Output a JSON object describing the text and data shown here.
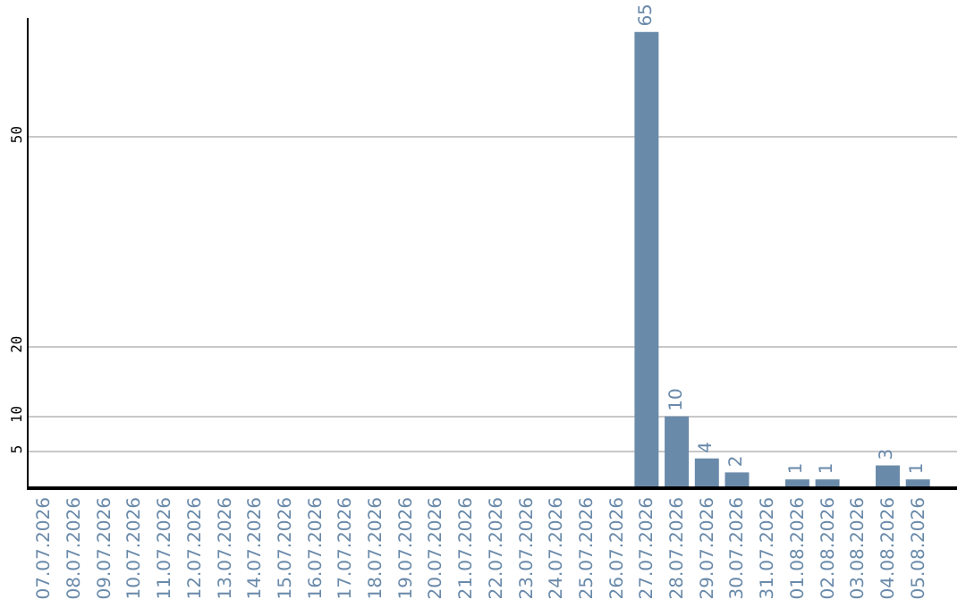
{
  "chart_data": {
    "type": "bar",
    "color": "#6a8aaa",
    "categories": [
      "07.07.2026",
      "08.07.2026",
      "09.07.2026",
      "10.07.2026",
      "11.07.2026",
      "12.07.2026",
      "13.07.2026",
      "14.07.2026",
      "15.07.2026",
      "16.07.2026",
      "17.07.2026",
      "18.07.2026",
      "19.07.2026",
      "20.07.2026",
      "21.07.2026",
      "22.07.2026",
      "23.07.2026",
      "24.07.2026",
      "25.07.2026",
      "26.07.2026",
      "27.07.2026",
      "28.07.2026",
      "29.07.2026",
      "30.07.2026",
      "31.07.2026",
      "01.08.2026",
      "02.08.2026",
      "03.08.2026",
      "04.08.2026",
      "05.08.2026"
    ],
    "values": [
      0,
      0,
      0,
      0,
      0,
      0,
      0,
      0,
      0,
      0,
      0,
      0,
      0,
      0,
      0,
      0,
      0,
      0,
      0,
      0,
      65,
      10,
      4,
      2,
      0,
      1,
      1,
      0,
      3,
      1
    ],
    "value_labels": [
      null,
      null,
      null,
      null,
      null,
      null,
      null,
      null,
      null,
      null,
      null,
      null,
      null,
      null,
      null,
      null,
      null,
      null,
      null,
      null,
      "65",
      "10",
      "4",
      "2",
      null,
      "1",
      "1",
      null,
      "3",
      "1"
    ],
    "ylim": [
      0,
      67
    ],
    "yticks": [
      5,
      10,
      20,
      50
    ],
    "grid": "y",
    "legend": false
  }
}
